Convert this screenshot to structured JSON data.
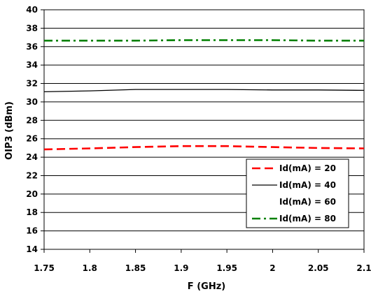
{
  "chart_data": {
    "type": "line",
    "title": "",
    "xlabel": "F (GHz)",
    "ylabel": "OIP3 (dBm)",
    "xlim": [
      1.75,
      2.1
    ],
    "ylim": [
      14,
      40
    ],
    "x_ticks": [
      1.75,
      1.8,
      1.85,
      1.9,
      1.95,
      2,
      2.05,
      2.1
    ],
    "x_tick_labels": [
      "1.75",
      "1.8",
      "1.85",
      "1.9",
      "1.95",
      "2",
      "2.05",
      "2.1"
    ],
    "y_ticks": [
      14,
      16,
      18,
      20,
      22,
      24,
      26,
      28,
      30,
      32,
      34,
      36,
      38,
      40
    ],
    "y_tick_labels": [
      "14",
      "16",
      "18",
      "20",
      "22",
      "24",
      "26",
      "28",
      "30",
      "32",
      "34",
      "36",
      "38",
      "40"
    ],
    "grid": "horizontal",
    "legend_position": "bottom-right",
    "series": [
      {
        "name": "Id(mA) = 20",
        "color": "#ff0000",
        "dash": "dashed",
        "x": [
          1.75,
          1.8,
          1.85,
          1.9,
          1.95,
          2,
          2.05,
          2.1
        ],
        "y": [
          24.85,
          24.95,
          25.1,
          25.2,
          25.2,
          25.1,
          25.0,
          24.95
        ]
      },
      {
        "name": "Id(mA) = 40",
        "color": "#000000",
        "dash": "solid",
        "x": [
          1.75,
          1.8,
          1.85,
          1.9,
          1.95,
          2,
          2.05,
          2.1
        ],
        "y": [
          31.1,
          31.2,
          31.35,
          31.35,
          31.35,
          31.3,
          31.3,
          31.25
        ]
      },
      {
        "name": "Id(mA) = 60",
        "color": "#ffffff",
        "dash": "solid",
        "x": [],
        "y": []
      },
      {
        "name": "Id(mA) = 80",
        "color": "#008000",
        "dash": "dashdot",
        "x": [
          1.75,
          1.8,
          1.85,
          1.9,
          1.95,
          2,
          2.05,
          2.1
        ],
        "y": [
          36.65,
          36.65,
          36.65,
          36.7,
          36.7,
          36.7,
          36.65,
          36.65
        ]
      }
    ]
  }
}
